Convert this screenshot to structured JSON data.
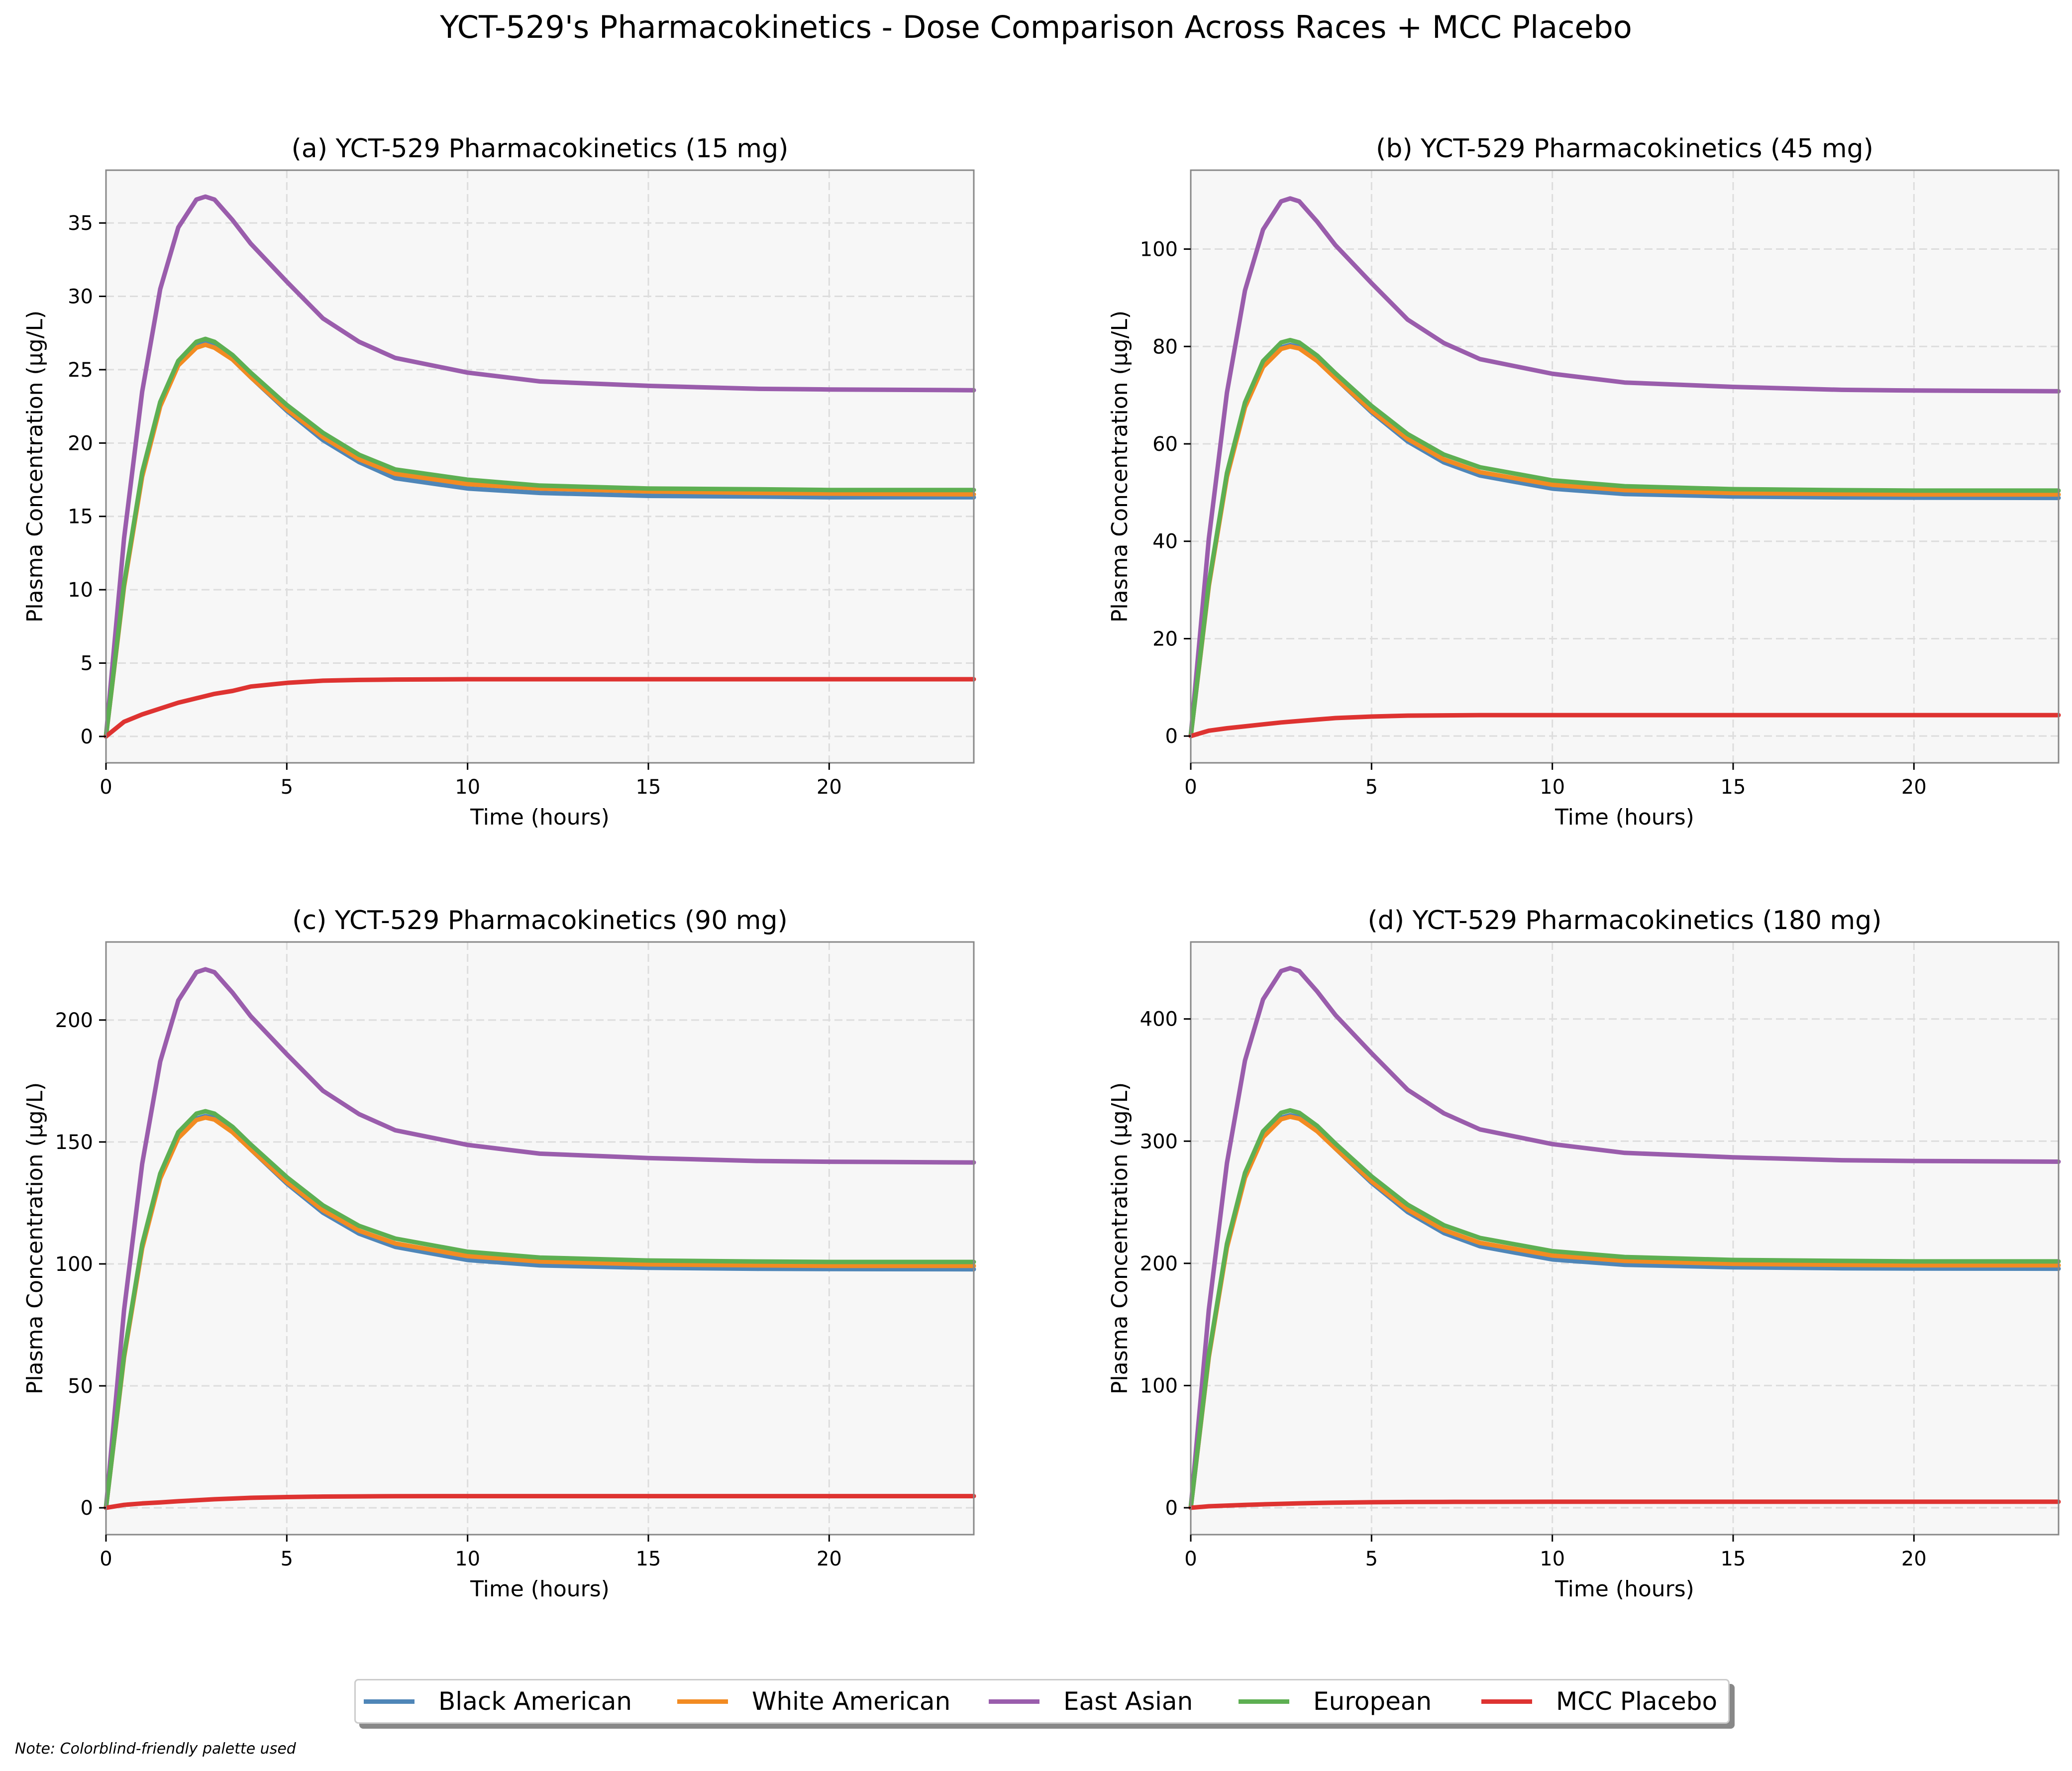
{
  "title": "YCT-529's Pharmacokinetics - Dose Comparison Across Races + MCC Placebo",
  "note": "Note: Colorblind-friendly palette used",
  "legend": [
    {
      "name": "Black American",
      "color": "#4f86b8"
    },
    {
      "name": "White American",
      "color": "#f28b22"
    },
    {
      "name": "East Asian",
      "color": "#9a5dac"
    },
    {
      "name": "European",
      "color": "#5daf52"
    },
    {
      "name": "MCC Placebo",
      "color": "#de3331"
    }
  ],
  "chart_data": [
    {
      "type": "line",
      "title": "(a) YCT-529 Pharmacokinetics (15 mg)",
      "xlabel": "Time (hours)",
      "ylabel": "Plasma Concentration (µg/L)",
      "xlim": [
        0,
        24
      ],
      "ylim": [
        -1.8,
        38.6
      ],
      "xticks": [
        0,
        5,
        10,
        15,
        20
      ],
      "yticks": [
        0,
        5,
        10,
        15,
        20,
        25,
        30,
        35
      ],
      "grid": true,
      "x": [
        0,
        0.5,
        1,
        1.5,
        2,
        2.5,
        2.75,
        3,
        3.5,
        4,
        5,
        6,
        7,
        8,
        10,
        12,
        15,
        18,
        20,
        24
      ],
      "series": [
        {
          "name": "Black American",
          "color": "#4f86b8",
          "values": [
            0,
            10.3,
            17.8,
            22.6,
            25.4,
            26.6,
            26.8,
            26.6,
            25.7,
            24.5,
            22.2,
            20.2,
            18.7,
            17.6,
            16.9,
            16.6,
            16.4,
            16.35,
            16.3,
            16.3
          ]
        },
        {
          "name": "White American",
          "color": "#f28b22",
          "values": [
            0,
            10.2,
            17.7,
            22.5,
            25.3,
            26.5,
            26.7,
            26.5,
            25.7,
            24.5,
            22.3,
            20.4,
            18.9,
            17.9,
            17.2,
            16.9,
            16.7,
            16.6,
            16.55,
            16.5
          ]
        },
        {
          "name": "East Asian",
          "color": "#9a5dac",
          "values": [
            0,
            13.5,
            23.5,
            30.5,
            34.7,
            36.6,
            36.8,
            36.6,
            35.2,
            33.6,
            31.0,
            28.5,
            26.9,
            25.8,
            24.8,
            24.2,
            23.9,
            23.7,
            23.65,
            23.6
          ]
        },
        {
          "name": "European",
          "color": "#5daf52",
          "values": [
            0,
            10.4,
            18.0,
            22.8,
            25.6,
            26.9,
            27.1,
            26.9,
            26.0,
            24.8,
            22.6,
            20.7,
            19.2,
            18.2,
            17.5,
            17.1,
            16.9,
            16.85,
            16.8,
            16.8
          ]
        },
        {
          "name": "MCC Placebo",
          "color": "#de3331",
          "values": [
            0,
            1.0,
            1.5,
            1.9,
            2.3,
            2.6,
            2.75,
            2.9,
            3.1,
            3.4,
            3.65,
            3.8,
            3.85,
            3.88,
            3.9,
            3.9,
            3.9,
            3.9,
            3.9,
            3.9
          ]
        }
      ]
    },
    {
      "type": "line",
      "title": "(b) YCT-529 Pharmacokinetics (45 mg)",
      "xlabel": "Time (hours)",
      "ylabel": "Plasma Concentration (µg/L)",
      "xlim": [
        0,
        24
      ],
      "ylim": [
        -5.5,
        116.2
      ],
      "xticks": [
        0,
        5,
        10,
        15,
        20
      ],
      "yticks": [
        0,
        20,
        40,
        60,
        80,
        100
      ],
      "grid": true,
      "x": [
        0,
        0.5,
        1,
        1.5,
        2,
        2.5,
        2.75,
        3,
        3.5,
        4,
        5,
        6,
        7,
        8,
        10,
        12,
        15,
        18,
        20,
        24
      ],
      "series": [
        {
          "name": "Black American",
          "color": "#4f86b8",
          "values": [
            0,
            31.0,
            53.5,
            67.8,
            76.1,
            79.8,
            80.3,
            79.9,
            77.2,
            73.5,
            66.5,
            60.5,
            56.2,
            53.5,
            50.8,
            49.7,
            49.2,
            49.0,
            48.95,
            48.9
          ]
        },
        {
          "name": "White American",
          "color": "#f28b22",
          "values": [
            0,
            30.8,
            53.2,
            67.5,
            75.8,
            79.5,
            80.0,
            79.6,
            77.0,
            73.5,
            66.8,
            61.0,
            56.8,
            54.2,
            51.6,
            50.5,
            49.9,
            49.7,
            49.6,
            49.6
          ]
        },
        {
          "name": "East Asian",
          "color": "#9a5dac",
          "values": [
            0,
            40.5,
            70.5,
            91.5,
            104.0,
            109.8,
            110.4,
            109.8,
            105.6,
            100.8,
            93.0,
            85.5,
            80.7,
            77.4,
            74.4,
            72.6,
            71.7,
            71.1,
            70.95,
            70.8
          ]
        },
        {
          "name": "European",
          "color": "#5daf52",
          "values": [
            0,
            31.3,
            54.0,
            68.5,
            77.0,
            80.8,
            81.3,
            80.8,
            78.1,
            74.5,
            67.8,
            62.0,
            57.8,
            55.2,
            52.5,
            51.3,
            50.7,
            50.5,
            50.4,
            50.4
          ]
        },
        {
          "name": "MCC Placebo",
          "color": "#de3331",
          "values": [
            0,
            1.1,
            1.6,
            2.0,
            2.4,
            2.8,
            2.95,
            3.1,
            3.4,
            3.7,
            4.0,
            4.2,
            4.25,
            4.3,
            4.3,
            4.3,
            4.3,
            4.3,
            4.3,
            4.3
          ]
        }
      ]
    },
    {
      "type": "line",
      "title": "(c) YCT-529 Pharmacokinetics (90 mg)",
      "xlabel": "Time (hours)",
      "ylabel": "Plasma Concentration (µg/L)",
      "xlim": [
        0,
        24
      ],
      "ylim": [
        -11,
        232
      ],
      "xticks": [
        0,
        5,
        10,
        15,
        20
      ],
      "yticks": [
        0,
        50,
        100,
        150,
        200
      ],
      "grid": true,
      "x": [
        0,
        0.5,
        1,
        1.5,
        2,
        2.5,
        2.75,
        3,
        3.5,
        4,
        5,
        6,
        7,
        8,
        10,
        12,
        15,
        18,
        20,
        24
      ],
      "series": [
        {
          "name": "Black American",
          "color": "#4f86b8",
          "values": [
            0,
            62.0,
            107.0,
            135.6,
            152.2,
            159.6,
            160.6,
            159.8,
            154.4,
            147.0,
            133.0,
            121.0,
            112.4,
            107.0,
            101.6,
            99.4,
            98.4,
            98.0,
            97.9,
            97.8
          ]
        },
        {
          "name": "White American",
          "color": "#f28b22",
          "values": [
            0,
            61.6,
            106.4,
            135.0,
            151.6,
            159.0,
            160.0,
            159.2,
            154.0,
            147.0,
            133.6,
            122.0,
            113.6,
            108.4,
            103.2,
            101.0,
            99.8,
            99.4,
            99.2,
            99.2
          ]
        },
        {
          "name": "East Asian",
          "color": "#9a5dac",
          "values": [
            0,
            81.0,
            141.0,
            183.0,
            208.0,
            219.6,
            220.8,
            219.6,
            211.2,
            201.6,
            186.0,
            171.0,
            161.4,
            154.8,
            148.8,
            145.2,
            143.4,
            142.2,
            141.9,
            141.6
          ]
        },
        {
          "name": "European",
          "color": "#5daf52",
          "values": [
            0,
            62.6,
            108.0,
            137.0,
            154.0,
            161.6,
            162.6,
            161.6,
            156.2,
            149.0,
            135.6,
            124.0,
            115.6,
            110.4,
            105.0,
            102.6,
            101.4,
            101.0,
            100.8,
            100.8
          ]
        },
        {
          "name": "MCC Placebo",
          "color": "#de3331",
          "values": [
            0,
            1.2,
            1.8,
            2.2,
            2.7,
            3.1,
            3.3,
            3.5,
            3.8,
            4.1,
            4.4,
            4.6,
            4.7,
            4.75,
            4.8,
            4.8,
            4.8,
            4.8,
            4.8,
            4.8
          ]
        }
      ]
    },
    {
      "type": "line",
      "title": "(d) YCT-529 Pharmacokinetics (180 mg)",
      "xlabel": "Time (hours)",
      "ylabel": "Plasma Concentration (µg/L)",
      "xlim": [
        0,
        24
      ],
      "ylim": [
        -22,
        463
      ],
      "xticks": [
        0,
        5,
        10,
        15,
        20
      ],
      "yticks": [
        0,
        100,
        200,
        300,
        400
      ],
      "grid": true,
      "x": [
        0,
        0.5,
        1,
        1.5,
        2,
        2.5,
        2.75,
        3,
        3.5,
        4,
        5,
        6,
        7,
        8,
        10,
        12,
        15,
        18,
        20,
        24
      ],
      "series": [
        {
          "name": "Black American",
          "color": "#4f86b8",
          "values": [
            0,
            124.0,
            214.0,
            271.2,
            304.4,
            319.2,
            321.2,
            319.6,
            308.8,
            294.0,
            266.0,
            242.0,
            224.8,
            214.0,
            203.2,
            198.8,
            196.8,
            196.0,
            195.8,
            195.6
          ]
        },
        {
          "name": "White American",
          "color": "#f28b22",
          "values": [
            0,
            123.2,
            212.8,
            270.0,
            303.2,
            318.0,
            320.0,
            318.4,
            308.0,
            294.0,
            267.2,
            244.0,
            227.2,
            216.8,
            206.4,
            202.0,
            199.6,
            198.8,
            198.4,
            198.4
          ]
        },
        {
          "name": "East Asian",
          "color": "#9a5dac",
          "values": [
            0,
            162.0,
            282.0,
            366.0,
            416.0,
            439.2,
            441.6,
            439.2,
            422.4,
            403.2,
            372.0,
            342.0,
            322.8,
            309.6,
            297.6,
            290.4,
            286.8,
            284.4,
            283.8,
            283.2
          ]
        },
        {
          "name": "European",
          "color": "#5daf52",
          "values": [
            0,
            125.2,
            216.0,
            274.0,
            308.0,
            323.2,
            325.2,
            323.2,
            312.4,
            298.0,
            271.2,
            248.0,
            231.2,
            220.8,
            210.0,
            205.2,
            202.8,
            202.0,
            201.6,
            201.6
          ]
        },
        {
          "name": "MCC Placebo",
          "color": "#de3331",
          "values": [
            0,
            1.2,
            1.8,
            2.3,
            2.8,
            3.2,
            3.4,
            3.6,
            3.9,
            4.2,
            4.5,
            4.7,
            4.8,
            4.85,
            4.9,
            4.9,
            4.9,
            4.9,
            4.9,
            4.9
          ]
        }
      ]
    }
  ]
}
